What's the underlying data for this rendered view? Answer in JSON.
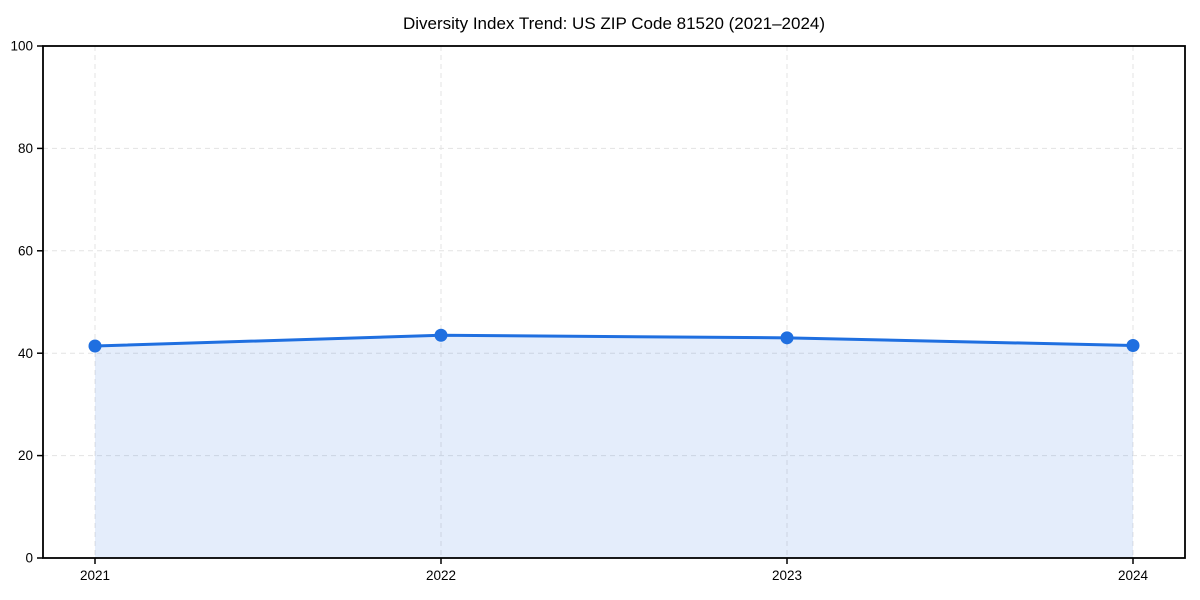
{
  "chart_data": {
    "type": "area",
    "title": "Diversity Index Trend: US ZIP Code 81520 (2021–2024)",
    "x": [
      2021,
      2022,
      2023,
      2024
    ],
    "series": [
      {
        "name": "Diversity Index",
        "values": [
          41.4,
          43.5,
          43.0,
          41.5
        ]
      }
    ],
    "xlabel": "",
    "ylabel": "",
    "ylim": [
      0,
      100
    ],
    "yticks": [
      0,
      20,
      40,
      60,
      80,
      100
    ],
    "xtick_labels": [
      "2021",
      "2022",
      "2023",
      "2024"
    ],
    "grid": "dashed",
    "legend": "none",
    "colors": {
      "line": "#1f6fe0",
      "marker": "#1f6fe0",
      "fill": "rgba(31, 111, 224, 0.12)",
      "grid": "#e3e3e3",
      "spine": "#000000",
      "text": "#000000",
      "background": "#ffffff"
    }
  }
}
